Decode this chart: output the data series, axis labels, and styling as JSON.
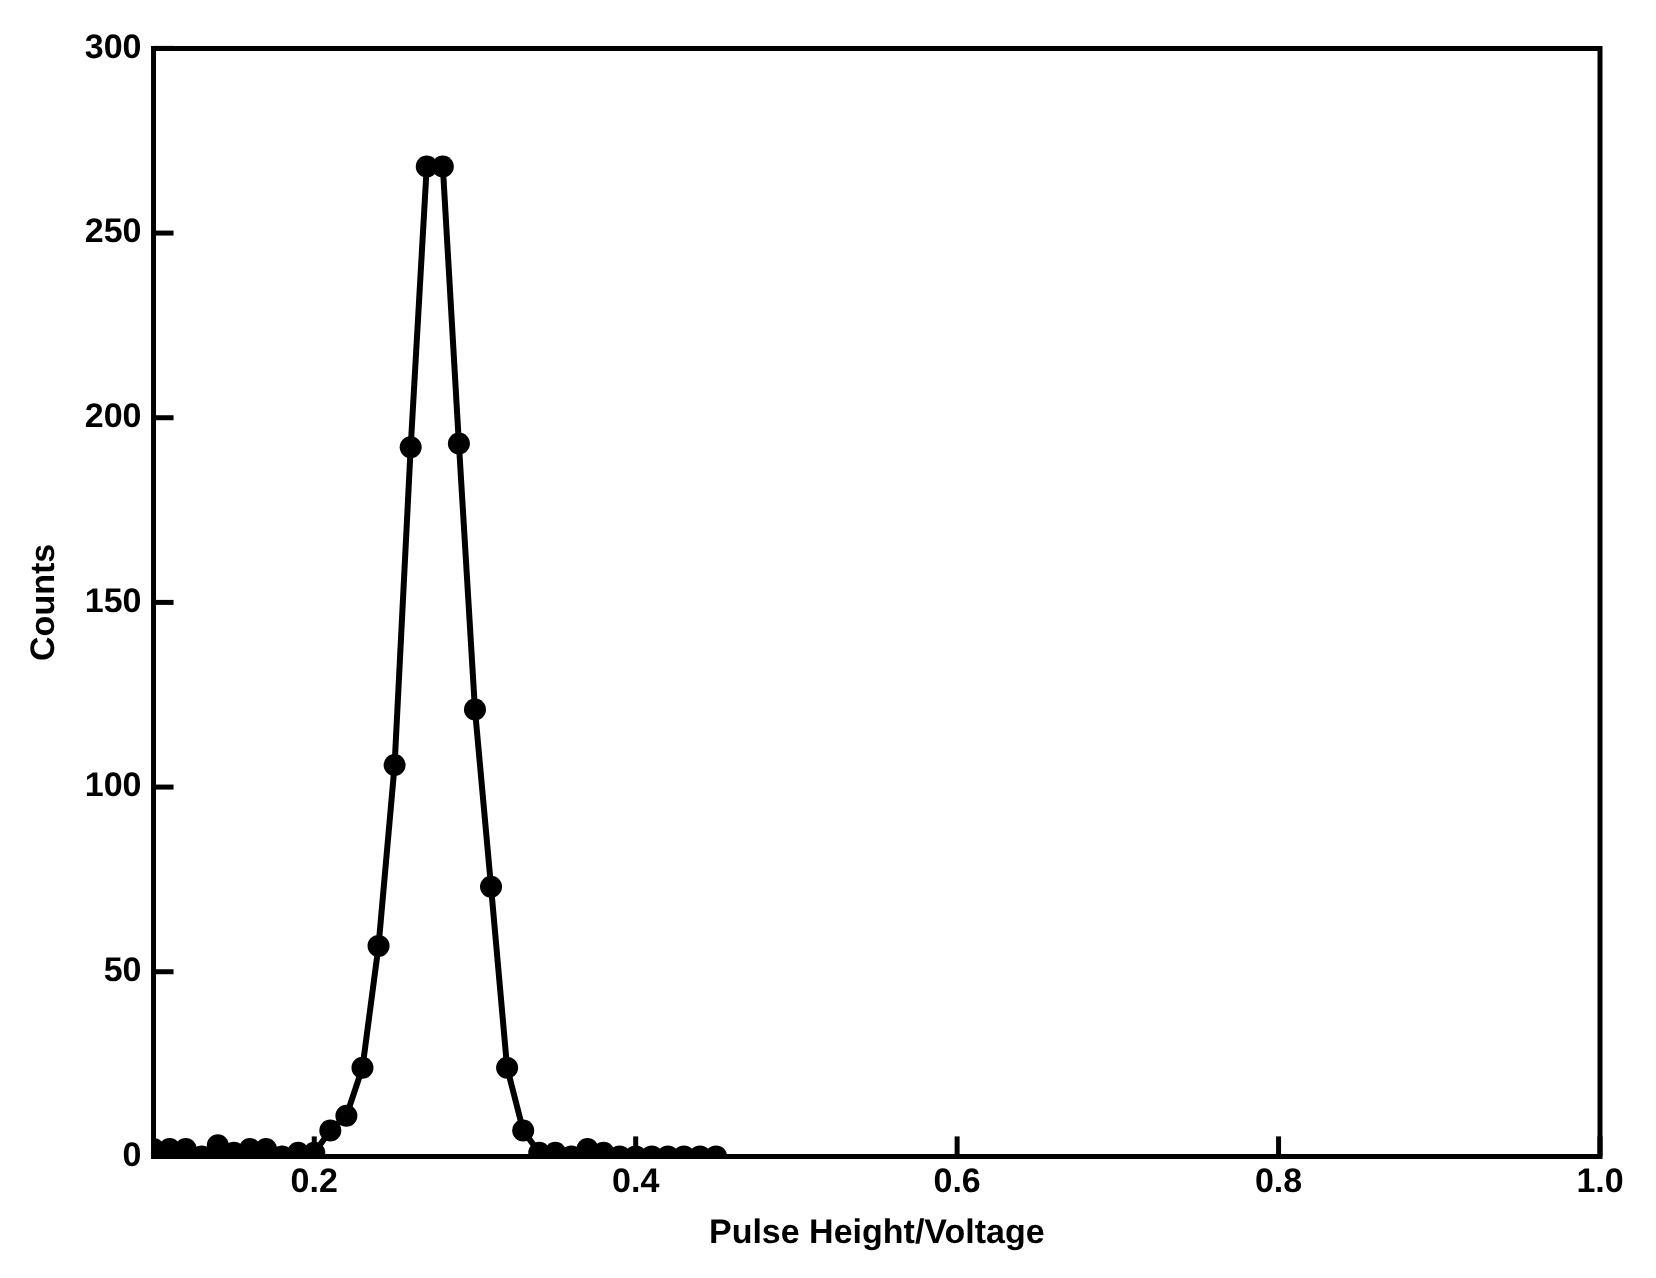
{
  "chart_data": {
    "type": "line",
    "xlabel": "Pulse Height/Voltage",
    "ylabel": "Counts",
    "x": [
      0.1,
      0.11,
      0.12,
      0.13,
      0.14,
      0.15,
      0.16,
      0.17,
      0.18,
      0.19,
      0.2,
      0.21,
      0.22,
      0.23,
      0.24,
      0.25,
      0.26,
      0.27,
      0.28,
      0.29,
      0.3,
      0.31,
      0.32,
      0.33,
      0.34,
      0.35,
      0.36,
      0.37,
      0.38,
      0.39,
      0.4,
      0.41,
      0.42,
      0.43,
      0.44,
      0.45
    ],
    "series": [
      {
        "color": "#000000",
        "values": [
          2,
          2,
          2,
          0,
          3,
          1,
          2,
          2,
          0,
          1,
          1,
          7,
          11,
          24,
          57,
          106,
          192,
          268,
          268,
          193,
          121,
          73,
          24,
          7,
          1,
          1,
          0,
          2,
          1,
          0,
          0,
          0,
          0,
          0,
          0,
          0
        ]
      }
    ],
    "xlim": [
      0.1,
      1.0
    ],
    "xticks": [
      {
        "value": 0.2,
        "label": "0.2"
      },
      {
        "value": 0.4,
        "label": "0.4"
      },
      {
        "value": 0.6,
        "label": "0.6"
      },
      {
        "value": 0.8,
        "label": "0.8"
      },
      {
        "value": 1.0,
        "label": "1.0"
      }
    ],
    "ylim": [
      0,
      300
    ],
    "yticks": [
      0,
      50,
      100,
      150,
      200,
      250,
      300
    ],
    "grid": false,
    "legend": false,
    "marker": "circle",
    "line_style": "solid"
  }
}
